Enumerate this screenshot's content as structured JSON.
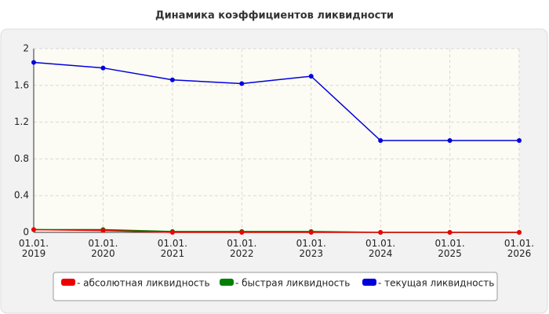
{
  "chart_data": {
    "type": "line",
    "title": "Динамика коэффициентов ликвидности",
    "categories": [
      "01.01.\n2019",
      "01.01.\n2020",
      "01.01.\n2021",
      "01.01.\n2022",
      "01.01.\n2023",
      "01.01.\n2024",
      "01.01.\n2025",
      "01.01.\n2026"
    ],
    "series": [
      {
        "name": "- быстрая ликвидность",
        "color": "#008000",
        "values": [
          0.03,
          0.03,
          0.01,
          0.01,
          0.01,
          0,
          0,
          0
        ]
      },
      {
        "name": "- абсолютная ликвидность",
        "color": "#ee0000",
        "values": [
          0.03,
          0.02,
          0.0,
          0.0,
          0.0,
          0,
          0,
          0
        ]
      },
      {
        "name": "- текущая ликвидность",
        "color": "#0000dd",
        "values": [
          1.85,
          1.79,
          1.66,
          1.62,
          1.7,
          1.0,
          1.0,
          1.0
        ]
      }
    ],
    "legend_order": [
      1,
      0,
      2
    ],
    "ylim": [
      0,
      2
    ],
    "yticks": [
      0,
      0.4,
      0.8,
      1.2,
      1.6,
      2
    ],
    "grid": true
  }
}
